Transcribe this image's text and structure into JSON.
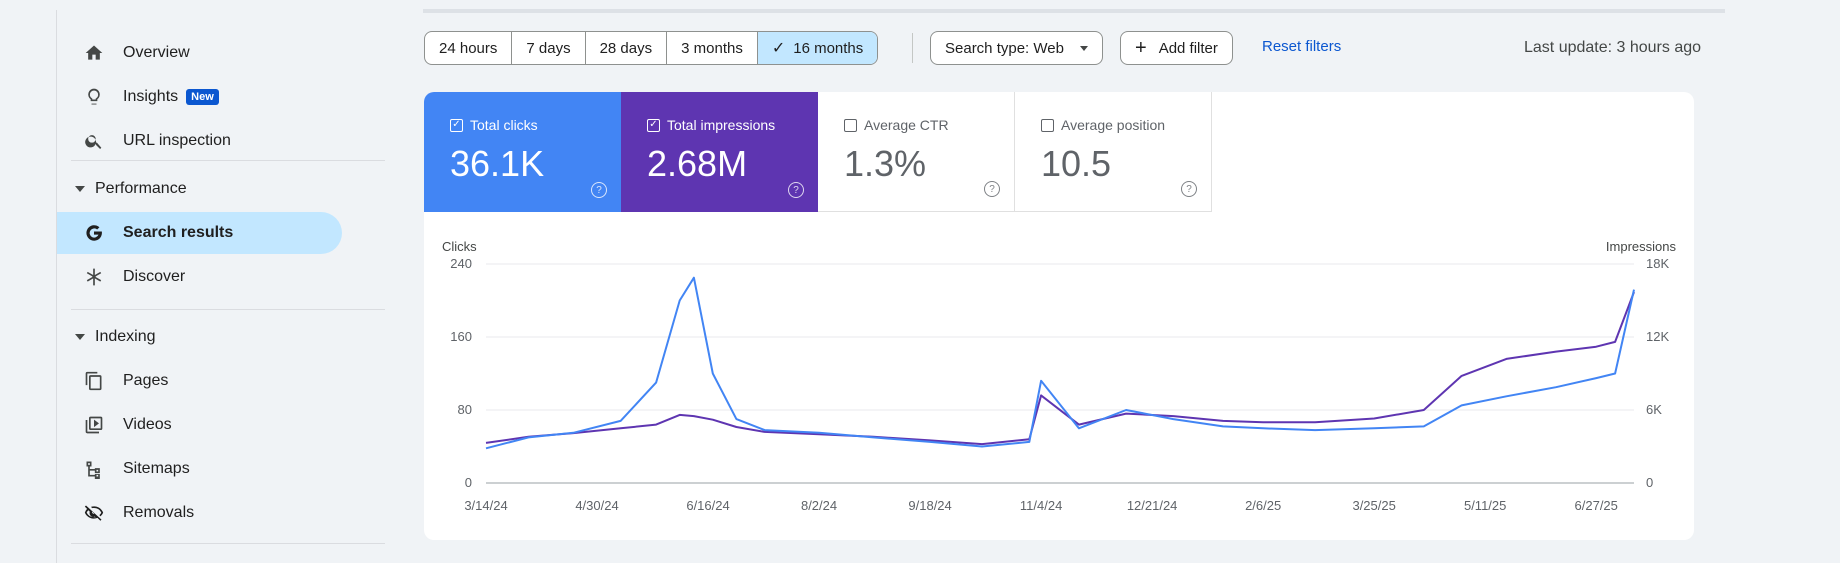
{
  "sidebar": {
    "items": [
      {
        "label": "Overview",
        "icon": "home-icon"
      },
      {
        "label": "Insights",
        "icon": "lightbulb-icon",
        "badge": "New"
      },
      {
        "label": "URL inspection",
        "icon": "search-icon"
      }
    ],
    "sections": [
      {
        "label": "Performance",
        "items": [
          {
            "label": "Search results",
            "icon": "google-g-icon",
            "active": true
          },
          {
            "label": "Discover",
            "icon": "asterisk-icon"
          }
        ]
      },
      {
        "label": "Indexing",
        "items": [
          {
            "label": "Pages",
            "icon": "pages-icon"
          },
          {
            "label": "Videos",
            "icon": "videos-icon"
          },
          {
            "label": "Sitemaps",
            "icon": "sitemap-icon"
          },
          {
            "label": "Removals",
            "icon": "eye-off-icon"
          }
        ]
      }
    ]
  },
  "toolbar": {
    "date_ranges": [
      "24 hours",
      "7 days",
      "28 days",
      "3 months",
      "16 months"
    ],
    "selected_range": "16 months",
    "search_type": "Search type: Web",
    "add_filter": "Add filter",
    "reset_filters": "Reset filters",
    "last_update": "Last update: 3 hours ago"
  },
  "metrics": [
    {
      "label": "Total clicks",
      "value": "36.1K",
      "checked": true,
      "color": "#4285f4"
    },
    {
      "label": "Total impressions",
      "value": "2.68M",
      "checked": true,
      "color": "#5e35b1"
    },
    {
      "label": "Average CTR",
      "value": "1.3%",
      "checked": false
    },
    {
      "label": "Average position",
      "value": "10.5",
      "checked": false
    }
  ],
  "chart_data": {
    "type": "line",
    "left_axis_label": "Clicks",
    "right_axis_label": "Impressions",
    "left_ticks": [
      "240",
      "160",
      "80",
      "0"
    ],
    "right_ticks": [
      "18K",
      "12K",
      "6K",
      "0"
    ],
    "x_tick_labels": [
      "3/14/24",
      "4/30/24",
      "6/16/24",
      "8/2/24",
      "9/18/24",
      "11/4/24",
      "12/21/24",
      "2/6/25",
      "3/25/25",
      "5/11/25",
      "6/27/25"
    ],
    "left_range": [
      0,
      240
    ],
    "right_range": [
      0,
      18000
    ],
    "x_range": [
      "3/14/24",
      "7/13/25"
    ],
    "grid": true,
    "series": [
      {
        "name": "Total clicks",
        "color": "#4285f4",
        "axis": "left",
        "x": [
          "3/14/24",
          "4/1/24",
          "4/20/24",
          "5/10/24",
          "5/25/24",
          "6/4/24",
          "6/10/24",
          "6/18/24",
          "6/28/24",
          "7/10/24",
          "8/2/24",
          "8/25/24",
          "9/18/24",
          "10/10/24",
          "10/30/24",
          "11/4/24",
          "11/20/24",
          "12/10/24",
          "12/30/24",
          "1/20/25",
          "2/6/25",
          "2/28/25",
          "3/25/25",
          "4/15/25",
          "5/1/25",
          "5/20/25",
          "6/10/25",
          "6/27/25",
          "7/5/25",
          "7/13/25"
        ],
        "values": [
          38,
          50,
          55,
          68,
          110,
          200,
          225,
          120,
          70,
          58,
          55,
          50,
          45,
          40,
          45,
          112,
          60,
          80,
          70,
          62,
          60,
          58,
          60,
          62,
          85,
          95,
          105,
          115,
          120,
          212
        ]
      },
      {
        "name": "Total impressions",
        "color": "#5e35b1",
        "axis": "right",
        "x": [
          "3/14/24",
          "4/1/24",
          "4/20/24",
          "5/10/24",
          "5/25/24",
          "6/4/24",
          "6/10/24",
          "6/18/24",
          "6/28/24",
          "7/10/24",
          "8/2/24",
          "8/25/24",
          "9/18/24",
          "10/10/24",
          "10/30/24",
          "11/4/24",
          "11/20/24",
          "12/10/24",
          "12/30/24",
          "1/20/25",
          "2/6/25",
          "2/28/25",
          "3/25/25",
          "4/15/25",
          "5/1/25",
          "5/20/25",
          "6/10/25",
          "6/27/25",
          "7/5/25",
          "7/13/25"
        ],
        "values": [
          3300,
          3800,
          4100,
          4500,
          4800,
          5600,
          5500,
          5200,
          4600,
          4200,
          4000,
          3800,
          3500,
          3200,
          3600,
          7200,
          4800,
          5700,
          5500,
          5100,
          5000,
          5000,
          5300,
          6000,
          8800,
          10200,
          10800,
          11200,
          11600,
          15700
        ]
      }
    ]
  }
}
